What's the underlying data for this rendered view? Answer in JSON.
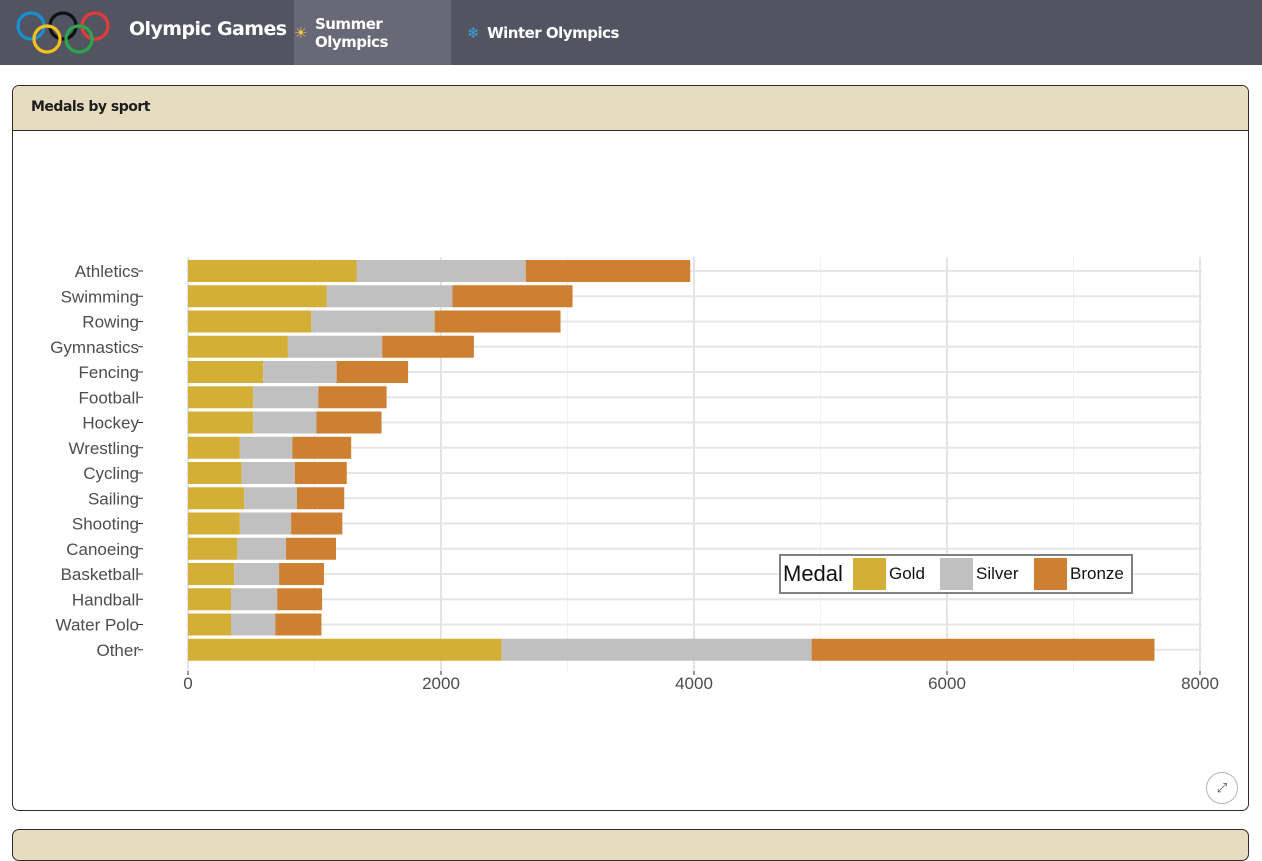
{
  "navbar": {
    "brand": "Olympic Games",
    "tabs": [
      {
        "label": "Summer Olympics",
        "icon": "sun-icon",
        "active": true
      },
      {
        "label": "Winter Olympics",
        "icon": "snowflake-icon",
        "active": false
      }
    ]
  },
  "card": {
    "title": "Medals by sport",
    "expand_icon": "expand-icon"
  },
  "colors": {
    "gold": "#d4af37",
    "silver": "#c0c0c0",
    "bronze": "#cd7f32",
    "navbar": "#535462",
    "card_header": "#e6dcbf"
  },
  "chart_data": {
    "type": "bar",
    "orientation": "horizontal",
    "stacked": true,
    "categories": [
      "Athletics",
      "Swimming",
      "Rowing",
      "Gymnastics",
      "Fencing",
      "Football",
      "Hockey",
      "Wrestling",
      "Cycling",
      "Sailing",
      "Shooting",
      "Canoeing",
      "Basketball",
      "Handball",
      "Water Polo",
      "Other"
    ],
    "series": [
      {
        "name": "Gold",
        "color": "#d4af37",
        "values": [
          1335,
          1095,
          975,
          790,
          595,
          515,
          515,
          410,
          425,
          445,
          410,
          390,
          365,
          340,
          340,
          2480
        ]
      },
      {
        "name": "Silver",
        "color": "#c0c0c0",
        "values": [
          1335,
          995,
          975,
          745,
          580,
          515,
          500,
          415,
          420,
          415,
          405,
          385,
          355,
          365,
          350,
          2450
        ]
      },
      {
        "name": "Bronze",
        "color": "#cd7f32",
        "values": [
          1300,
          950,
          995,
          725,
          565,
          540,
          515,
          465,
          410,
          375,
          405,
          395,
          355,
          355,
          365,
          2710
        ]
      }
    ],
    "xlim": [
      0,
      8000
    ],
    "xticks": [
      0,
      2000,
      4000,
      6000,
      8000
    ],
    "xlabel": "",
    "ylabel": "",
    "legend": {
      "title": "Medal",
      "position": "right-inside",
      "entries": [
        "Gold",
        "Silver",
        "Bronze"
      ]
    },
    "grid": true
  }
}
